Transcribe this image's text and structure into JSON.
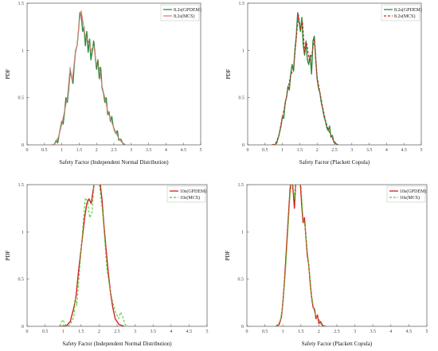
{
  "chart_data": [
    {
      "type": "line",
      "xlabel": "Safety Factor (Independent Normal Distribution)",
      "ylabel": "PDF",
      "xlim": [
        0,
        5
      ],
      "ylim": [
        0,
        1.5
      ],
      "xticks": [
        "0",
        "0.5",
        "1",
        "1.5",
        "2",
        "2.5",
        "3",
        "3.5",
        "4",
        "4.5",
        "5"
      ],
      "yticks": [
        "0",
        "0.5",
        "1",
        "1.5"
      ],
      "legend_position": "top-right",
      "series": [
        {
          "name": "8.2s(GPDEM)",
          "color": "#2e8b3a",
          "style": "solid",
          "x": [
            0.7,
            0.78,
            0.84,
            0.88,
            0.92,
            0.96,
            1.0,
            1.04,
            1.08,
            1.12,
            1.16,
            1.2,
            1.24,
            1.28,
            1.32,
            1.36,
            1.4,
            1.44,
            1.48,
            1.52,
            1.56,
            1.6,
            1.64,
            1.68,
            1.72,
            1.76,
            1.8,
            1.84,
            1.88,
            1.92,
            1.96,
            2.0,
            2.04,
            2.08,
            2.12,
            2.16,
            2.2,
            2.24,
            2.28,
            2.32,
            2.36,
            2.4,
            2.44,
            2.48,
            2.52,
            2.56,
            2.6,
            2.64,
            2.7,
            2.75,
            2.8,
            2.85
          ],
          "y": [
            0.0,
            0.0,
            0.05,
            0.02,
            0.1,
            0.18,
            0.25,
            0.22,
            0.35,
            0.5,
            0.45,
            0.6,
            0.78,
            0.72,
            0.65,
            0.85,
            1.0,
            1.05,
            1.2,
            1.4,
            1.38,
            1.2,
            1.25,
            1.05,
            1.2,
            0.98,
            1.12,
            0.9,
            1.0,
            1.1,
            0.95,
            0.8,
            0.9,
            0.7,
            0.82,
            0.6,
            0.55,
            0.45,
            0.5,
            0.32,
            0.35,
            0.25,
            0.3,
            0.2,
            0.15,
            0.12,
            0.15,
            0.05,
            0.06,
            0.02,
            0.0,
            0.0
          ]
        },
        {
          "name": "8.2s(MCS)",
          "color": "#e08080",
          "style": "solid",
          "x": [
            0.7,
            0.8,
            0.86,
            0.92,
            1.0,
            1.08,
            1.16,
            1.24,
            1.3,
            1.38,
            1.44,
            1.5,
            1.56,
            1.62,
            1.68,
            1.76,
            1.84,
            1.92,
            2.0,
            2.08,
            2.16,
            2.24,
            2.32,
            2.4,
            2.48,
            2.56,
            2.64,
            2.72,
            2.8,
            2.85
          ],
          "y": [
            0.0,
            0.01,
            0.05,
            0.1,
            0.22,
            0.36,
            0.5,
            0.82,
            0.68,
            0.95,
            1.05,
            1.3,
            1.42,
            1.28,
            1.15,
            1.1,
            1.0,
            1.05,
            0.85,
            0.82,
            0.62,
            0.5,
            0.36,
            0.27,
            0.2,
            0.13,
            0.07,
            0.03,
            0.01,
            0.0
          ]
        }
      ]
    },
    {
      "type": "line",
      "xlabel": "Safety Factor (Plackett Copula)",
      "ylabel": "PDF",
      "xlim": [
        0,
        5
      ],
      "ylim": [
        0,
        1.5
      ],
      "xticks": [
        "0",
        "0.5",
        "1",
        "1.5",
        "2",
        "2.5",
        "3",
        "3.5",
        "4",
        "4.5",
        "5"
      ],
      "yticks": [
        "0",
        "0.5",
        "1",
        "1.5"
      ],
      "legend_position": "top-right",
      "series": [
        {
          "name": "8.2s(GPDEM)",
          "color": "#2e8b3a",
          "style": "solid",
          "x": [
            0.7,
            0.78,
            0.84,
            0.9,
            0.96,
            1.0,
            1.04,
            1.08,
            1.12,
            1.16,
            1.2,
            1.24,
            1.28,
            1.32,
            1.36,
            1.4,
            1.44,
            1.48,
            1.52,
            1.56,
            1.6,
            1.64,
            1.68,
            1.72,
            1.76,
            1.8,
            1.84,
            1.88,
            1.92,
            1.96,
            2.0,
            2.04,
            2.08,
            2.12,
            2.16,
            2.2,
            2.24,
            2.28,
            2.32,
            2.36,
            2.4,
            2.44,
            2.48,
            2.55,
            2.6
          ],
          "y": [
            0.0,
            0.0,
            0.02,
            0.1,
            0.2,
            0.3,
            0.28,
            0.45,
            0.5,
            0.62,
            0.58,
            0.75,
            0.85,
            0.78,
            1.0,
            1.15,
            1.4,
            1.3,
            1.2,
            1.35,
            1.05,
            0.95,
            1.1,
            0.9,
            0.85,
            0.95,
            0.75,
            1.1,
            1.15,
            0.9,
            0.7,
            0.6,
            0.55,
            0.45,
            0.38,
            0.3,
            0.25,
            0.18,
            0.15,
            0.2,
            0.08,
            0.1,
            0.03,
            0.01,
            0.0
          ]
        },
        {
          "name": "8.2s(MCS)",
          "color": "#d42020",
          "style": "dashed",
          "x": [
            0.7,
            0.8,
            0.9,
            1.0,
            1.08,
            1.16,
            1.24,
            1.32,
            1.4,
            1.46,
            1.52,
            1.58,
            1.64,
            1.7,
            1.78,
            1.86,
            1.92,
            2.0,
            2.08,
            2.16,
            2.24,
            2.32,
            2.4,
            2.48,
            2.6
          ],
          "y": [
            0.0,
            0.01,
            0.1,
            0.3,
            0.43,
            0.6,
            0.74,
            0.8,
            1.12,
            1.38,
            1.22,
            1.3,
            0.98,
            1.08,
            0.88,
            0.98,
            1.12,
            0.72,
            0.56,
            0.4,
            0.26,
            0.16,
            0.1,
            0.04,
            0.0
          ]
        }
      ]
    },
    {
      "type": "line",
      "xlabel": "Safety Factor (Independent Normal Distribution)",
      "ylabel": "PDF",
      "xlim": [
        0,
        5
      ],
      "ylim": [
        0,
        1.5
      ],
      "xticks": [
        "0",
        "0.5",
        "1",
        "1.5",
        "2",
        "2.5",
        "3",
        "3.5",
        "4",
        "4.5",
        "5"
      ],
      "yticks": [
        "0",
        "0.5",
        "1",
        "1.5"
      ],
      "legend_position": "top-right",
      "series": [
        {
          "name": "10s(GPDEM)",
          "color": "#d42020",
          "style": "solid",
          "x": [
            0.9,
            1.0,
            1.1,
            1.2,
            1.3,
            1.36,
            1.42,
            1.48,
            1.54,
            1.6,
            1.66,
            1.72,
            1.78,
            1.84,
            1.9,
            1.96,
            2.02,
            2.08,
            2.14,
            2.2,
            2.26,
            2.32,
            2.38,
            2.45,
            2.55,
            2.7
          ],
          "y": [
            0.0,
            0.0,
            0.01,
            0.05,
            0.2,
            0.32,
            0.55,
            0.75,
            0.95,
            1.15,
            1.3,
            1.35,
            1.3,
            1.45,
            1.6,
            1.68,
            1.55,
            1.35,
            1.05,
            0.8,
            0.55,
            0.35,
            0.2,
            0.08,
            0.02,
            0.0
          ]
        },
        {
          "name": "10s(MCS)",
          "color": "#55cc33",
          "style": "dashed",
          "x": [
            0.8,
            0.9,
            0.96,
            1.0,
            1.04,
            1.1,
            1.2,
            1.3,
            1.34,
            1.38,
            1.44,
            1.5,
            1.56,
            1.62,
            1.68,
            1.74,
            1.8,
            1.86,
            1.92,
            1.98,
            2.04,
            2.1,
            2.16,
            2.22,
            2.3,
            2.38,
            2.46,
            2.54,
            2.6,
            2.66,
            2.72,
            2.8
          ],
          "y": [
            0.0,
            0.0,
            0.05,
            0.07,
            0.03,
            0.0,
            0.02,
            0.1,
            0.3,
            0.22,
            0.5,
            0.8,
            1.1,
            1.36,
            1.33,
            1.15,
            1.2,
            1.5,
            1.68,
            1.6,
            1.4,
            1.2,
            0.9,
            0.6,
            0.4,
            0.25,
            0.15,
            0.08,
            0.15,
            0.1,
            0.02,
            0.0
          ]
        }
      ]
    },
    {
      "type": "line",
      "xlabel": "Safety Factor (Plackett Copula)",
      "ylabel": "PDF",
      "xlim": [
        0,
        5
      ],
      "ylim": [
        0,
        1.5
      ],
      "xticks": [
        "0",
        "0.5",
        "1",
        "1.5",
        "2",
        "2.5",
        "3",
        "3.5",
        "4",
        "4.5",
        "5"
      ],
      "yticks": [
        "0",
        "0.5",
        "1",
        "1.5"
      ],
      "legend_position": "top-right",
      "series": [
        {
          "name": "10s(GPDEM)",
          "color": "#d42020",
          "style": "solid",
          "x": [
            0.8,
            0.9,
            0.96,
            1.0,
            1.04,
            1.08,
            1.12,
            1.16,
            1.2,
            1.24,
            1.28,
            1.32,
            1.36,
            1.4,
            1.44,
            1.48,
            1.52,
            1.56,
            1.6,
            1.64,
            1.68,
            1.72,
            1.76,
            1.8,
            1.84,
            1.88,
            1.92,
            1.96,
            2.0,
            2.05,
            2.1,
            2.2
          ],
          "y": [
            0.0,
            0.02,
            0.1,
            0.25,
            0.45,
            0.7,
            0.95,
            1.2,
            1.45,
            1.6,
            1.45,
            1.25,
            1.55,
            1.7,
            1.78,
            1.55,
            1.3,
            1.1,
            1.15,
            0.95,
            0.75,
            0.65,
            0.45,
            0.3,
            0.2,
            0.18,
            0.08,
            0.12,
            0.03,
            0.05,
            0.01,
            0.0
          ]
        },
        {
          "name": "10s(MCS)",
          "color": "#55cc33",
          "style": "dashed",
          "x": [
            0.8,
            0.92,
            1.0,
            1.08,
            1.14,
            1.2,
            1.26,
            1.32,
            1.38,
            1.44,
            1.5,
            1.56,
            1.62,
            1.68,
            1.74,
            1.8,
            1.86,
            1.92,
            2.0,
            2.06,
            2.2
          ],
          "y": [
            0.0,
            0.05,
            0.22,
            0.62,
            1.0,
            1.38,
            1.58,
            1.35,
            1.62,
            1.78,
            1.52,
            1.15,
            1.05,
            0.8,
            0.58,
            0.32,
            0.18,
            0.1,
            0.08,
            0.02,
            0.0
          ]
        }
      ]
    }
  ]
}
